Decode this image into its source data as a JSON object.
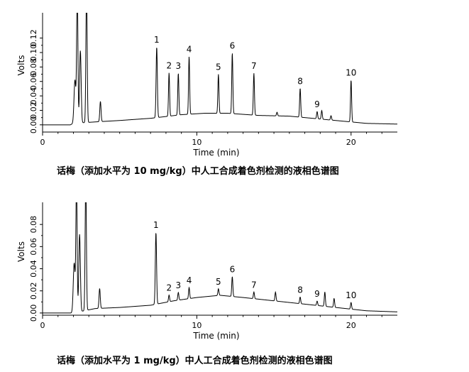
{
  "chart_data": [
    {
      "type": "line",
      "caption": "话梅（添加水平为 10 mg/kg）中人工合成着色剂检测的液相色谱图",
      "xlabel": "Time (min)",
      "ylabel": "Volts",
      "xlim": [
        0,
        23
      ],
      "ylim": [
        -0.01,
        0.155
      ],
      "x_ticks": [
        0,
        10,
        20
      ],
      "y_ticks": [
        0.0,
        0.02,
        0.04,
        0.06,
        0.08,
        0.1,
        0.12
      ],
      "y_tick_labels": [
        "0.00",
        "0.02",
        "0.04",
        "0.06",
        "0.08",
        "0.10",
        "0.12"
      ],
      "baseline": [
        [
          0,
          0
        ],
        [
          1.8,
          0
        ],
        [
          2.0,
          0.002
        ],
        [
          3.4,
          0.004
        ],
        [
          5,
          0.006
        ],
        [
          7,
          0.009
        ],
        [
          9,
          0.014
        ],
        [
          10.5,
          0.016
        ],
        [
          12,
          0.016
        ],
        [
          14,
          0.013
        ],
        [
          16,
          0.012
        ],
        [
          18,
          0.008
        ],
        [
          19.5,
          0.005
        ],
        [
          21,
          0.002
        ],
        [
          23,
          0.001
        ]
      ],
      "peaks": [
        {
          "t": 2.1,
          "h": 0.06,
          "w": 0.06
        },
        {
          "t": 2.25,
          "h": 0.19,
          "w": 0.04
        },
        {
          "t": 2.45,
          "h": 0.1,
          "w": 0.05
        },
        {
          "t": 2.85,
          "h": 0.19,
          "w": 0.04
        },
        {
          "t": 3.75,
          "h": 0.028,
          "w": 0.04
        },
        {
          "t": 7.4,
          "h": 0.098,
          "w": 0.04,
          "label": "1"
        },
        {
          "t": 8.2,
          "h": 0.06,
          "w": 0.035,
          "label": "2"
        },
        {
          "t": 8.8,
          "h": 0.058,
          "w": 0.035,
          "label": "3"
        },
        {
          "t": 9.5,
          "h": 0.08,
          "w": 0.035,
          "label": "4"
        },
        {
          "t": 11.4,
          "h": 0.054,
          "w": 0.035,
          "label": "5"
        },
        {
          "t": 12.3,
          "h": 0.084,
          "w": 0.035,
          "label": "6"
        },
        {
          "t": 13.7,
          "h": 0.058,
          "w": 0.035,
          "label": "7"
        },
        {
          "t": 16.7,
          "h": 0.04,
          "w": 0.035,
          "label": "8"
        },
        {
          "t": 17.8,
          "h": 0.01,
          "w": 0.035,
          "label": "9"
        },
        {
          "t": 18.1,
          "h": 0.012,
          "w": 0.035
        },
        {
          "t": 18.7,
          "h": 0.006,
          "w": 0.035
        },
        {
          "t": 15.2,
          "h": 0.005,
          "w": 0.035
        },
        {
          "t": 20.0,
          "h": 0.058,
          "w": 0.035,
          "label": "10"
        }
      ]
    },
    {
      "type": "line",
      "caption": "话梅（添加水平为 1 mg/kg）中人工合成着色剂检测的液相色谱图",
      "xlabel": "Time (min)",
      "ylabel": "Volts",
      "xlim": [
        0,
        23
      ],
      "ylim": [
        -0.002,
        0.1
      ],
      "x_ticks": [
        0,
        10,
        20
      ],
      "y_ticks": [
        0.0,
        0.02,
        0.04,
        0.06,
        0.08
      ],
      "y_tick_labels": [
        "0.00",
        "0.02",
        "0.04",
        "0.06",
        "0.08"
      ],
      "baseline": [
        [
          0,
          0
        ],
        [
          1.8,
          0
        ],
        [
          2.0,
          0.0
        ],
        [
          3.4,
          0.004
        ],
        [
          5,
          0.005
        ],
        [
          7,
          0.007
        ],
        [
          8.5,
          0.011
        ],
        [
          10,
          0.014
        ],
        [
          11.5,
          0.016
        ],
        [
          13,
          0.014
        ],
        [
          15,
          0.011
        ],
        [
          17,
          0.008
        ],
        [
          19,
          0.005
        ],
        [
          21,
          0.002
        ],
        [
          23,
          0.001
        ]
      ],
      "peaks": [
        {
          "t": 2.05,
          "h": 0.045,
          "w": 0.06
        },
        {
          "t": 2.2,
          "h": 0.12,
          "w": 0.04
        },
        {
          "t": 2.4,
          "h": 0.07,
          "w": 0.05
        },
        {
          "t": 2.8,
          "h": 0.12,
          "w": 0.04
        },
        {
          "t": 3.7,
          "h": 0.018,
          "w": 0.04
        },
        {
          "t": 7.35,
          "h": 0.065,
          "w": 0.04,
          "label": "1"
        },
        {
          "t": 8.2,
          "h": 0.006,
          "w": 0.035,
          "label": "2"
        },
        {
          "t": 8.8,
          "h": 0.007,
          "w": 0.035,
          "label": "3"
        },
        {
          "t": 9.5,
          "h": 0.01,
          "w": 0.035,
          "label": "4"
        },
        {
          "t": 11.4,
          "h": 0.006,
          "w": 0.035,
          "label": "5"
        },
        {
          "t": 12.3,
          "h": 0.018,
          "w": 0.035,
          "label": "6"
        },
        {
          "t": 13.7,
          "h": 0.006,
          "w": 0.035,
          "label": "7"
        },
        {
          "t": 15.1,
          "h": 0.008,
          "w": 0.035
        },
        {
          "t": 16.7,
          "h": 0.006,
          "w": 0.035,
          "label": "8"
        },
        {
          "t": 17.8,
          "h": 0.004,
          "w": 0.035,
          "label": "9"
        },
        {
          "t": 18.3,
          "h": 0.013,
          "w": 0.035
        },
        {
          "t": 18.9,
          "h": 0.008,
          "w": 0.035
        },
        {
          "t": 20.0,
          "h": 0.006,
          "w": 0.035,
          "label": "10"
        }
      ]
    }
  ]
}
